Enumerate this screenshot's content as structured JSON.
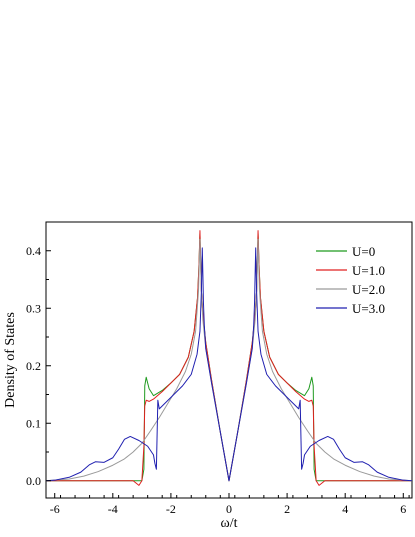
{
  "chart_data": {
    "type": "line",
    "title": "",
    "xlabel": "ω/t",
    "ylabel": "Density of States",
    "xlim": [
      -6.3,
      6.3
    ],
    "ylim": [
      -0.03,
      0.45
    ],
    "xticks": [
      -6,
      -4,
      -2,
      0,
      2,
      4,
      6
    ],
    "xtick_labels": [
      "-6",
      "-4",
      "-2",
      "0",
      "2",
      "4",
      "6"
    ],
    "yticks": [
      0.0,
      0.1,
      0.2,
      0.3,
      0.4
    ],
    "ytick_labels": [
      "0.0",
      "0.1",
      "0.2",
      "0.3",
      "0.4"
    ],
    "grid": false,
    "legend_position": "top-right",
    "symmetric_about_zero": true,
    "series": [
      {
        "name": "U=0",
        "color": "#1f9a1f",
        "x": [
          0,
          0.3,
          0.6,
          0.8,
          0.9,
          0.95,
          0.98,
          1.0,
          1.03,
          1.08,
          1.2,
          1.4,
          1.7,
          2.0,
          2.3,
          2.6,
          2.75,
          2.85,
          2.9,
          2.93,
          3.0,
          3.3,
          3.6,
          4.0,
          5.0,
          6.3
        ],
        "y": [
          0.0,
          0.085,
          0.175,
          0.24,
          0.29,
          0.33,
          0.39,
          0.43,
          0.38,
          0.32,
          0.26,
          0.215,
          0.185,
          0.17,
          0.157,
          0.148,
          0.16,
          0.18,
          0.165,
          0.02,
          0.0,
          0.0,
          0.0,
          0.0,
          0.0,
          0.0
        ]
      },
      {
        "name": "U=1.0",
        "color": "#e02020",
        "x": [
          0,
          0.3,
          0.6,
          0.8,
          0.9,
          0.95,
          0.98,
          1.0,
          1.03,
          1.08,
          1.2,
          1.4,
          1.7,
          2.0,
          2.3,
          2.6,
          2.75,
          2.85,
          2.9,
          2.93,
          3.0,
          3.1,
          3.3,
          3.6,
          4.0,
          5.0,
          6.3
        ],
        "y": [
          0.0,
          0.085,
          0.175,
          0.24,
          0.29,
          0.33,
          0.39,
          0.435,
          0.38,
          0.32,
          0.26,
          0.215,
          0.185,
          0.17,
          0.155,
          0.142,
          0.138,
          0.14,
          0.13,
          0.06,
          0.0,
          -0.008,
          0.0,
          0.0,
          0.0,
          0.0,
          0.0
        ]
      },
      {
        "name": "U=2.0",
        "color": "#9a9a9a",
        "x": [
          0,
          0.3,
          0.6,
          0.8,
          0.9,
          0.95,
          0.98,
          1.0,
          1.05,
          1.15,
          1.3,
          1.5,
          1.8,
          2.1,
          2.4,
          2.7,
          3.0,
          3.3,
          3.6,
          4.0,
          4.5,
          5.0,
          5.5,
          6.3
        ],
        "y": [
          0.0,
          0.085,
          0.17,
          0.23,
          0.28,
          0.33,
          0.38,
          0.42,
          0.33,
          0.26,
          0.22,
          0.19,
          0.16,
          0.135,
          0.11,
          0.087,
          0.065,
          0.05,
          0.038,
          0.027,
          0.016,
          0.008,
          0.003,
          0.0
        ]
      },
      {
        "name": "U=3.0",
        "color": "#2020b0",
        "x": [
          0,
          0.3,
          0.6,
          0.8,
          0.85,
          0.88,
          0.9,
          0.92,
          0.95,
          1.0,
          1.1,
          1.3,
          1.6,
          1.9,
          2.2,
          2.4,
          2.45,
          2.5,
          2.55,
          2.6,
          2.8,
          3.1,
          3.4,
          3.6,
          3.8,
          4.0,
          4.3,
          4.6,
          4.8,
          5.1,
          5.5,
          6.0,
          6.3
        ],
        "y": [
          0.0,
          0.085,
          0.17,
          0.23,
          0.27,
          0.31,
          0.36,
          0.405,
          0.33,
          0.26,
          0.22,
          0.185,
          0.165,
          0.15,
          0.135,
          0.125,
          0.14,
          0.02,
          0.03,
          0.045,
          0.06,
          0.07,
          0.077,
          0.072,
          0.055,
          0.04,
          0.032,
          0.033,
          0.028,
          0.015,
          0.006,
          0.001,
          0.0
        ]
      }
    ]
  }
}
